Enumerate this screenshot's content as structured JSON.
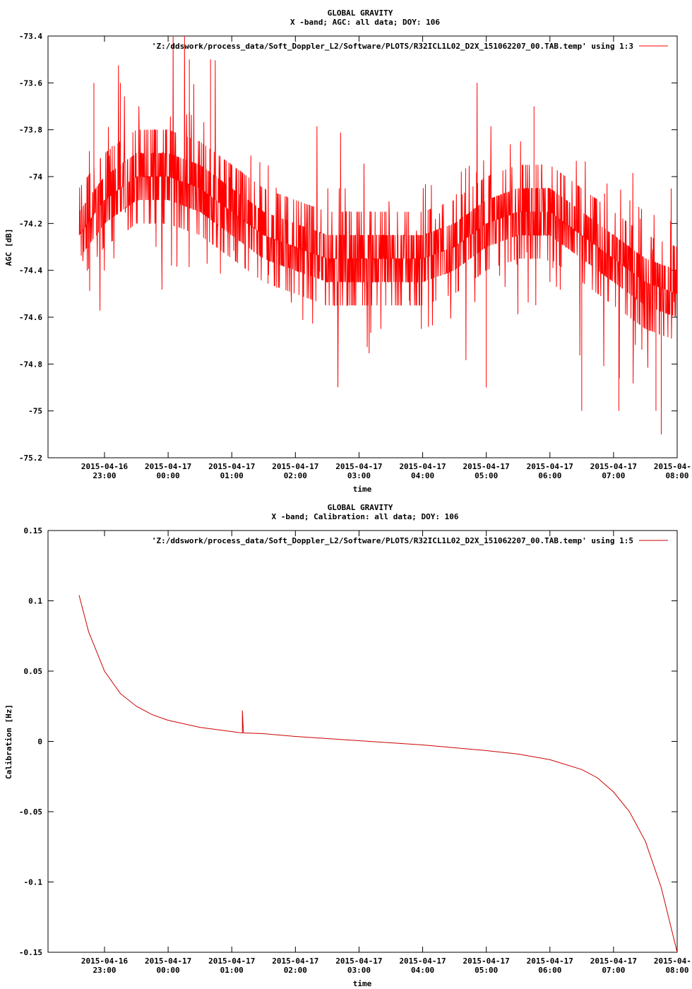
{
  "chart_data": [
    {
      "type": "line",
      "title": "GLOBAL GRAVITY",
      "subtitle": "X -band; AGC: all data; DOY: 106",
      "xlabel": "time",
      "ylabel": "AGC [dB]",
      "ylim": [
        -75.2,
        -73.4
      ],
      "yticks": [
        "-73.4",
        "-73.6",
        "-73.8",
        "-74",
        "-74.2",
        "-74.4",
        "-74.6",
        "-74.8",
        "-75",
        "-75.2"
      ],
      "xticks": [
        [
          "2015-04-16",
          "23:00"
        ],
        [
          "2015-04-17",
          "00:00"
        ],
        [
          "2015-04-17",
          "01:00"
        ],
        [
          "2015-04-17",
          "02:00"
        ],
        [
          "2015-04-17",
          "03:00"
        ],
        [
          "2015-04-17",
          "04:00"
        ],
        [
          "2015-04-17",
          "05:00"
        ],
        [
          "2015-04-17",
          "06:00"
        ],
        [
          "2015-04-17",
          "07:00"
        ],
        [
          "2015-04-17",
          "08:00"
        ]
      ],
      "legend_position": "top-right",
      "series": [
        {
          "name": "'Z:/ddswork/process_data/Soft_Doppler_L2/Software/PLOTS/R32ICL1L02_D2X_151062207_00.TAB.temp' using 1:3",
          "color": "#ff0000",
          "time_range": [
            "2015-04-16 22:36",
            "2015-04-17 08:00"
          ],
          "trend": [
            [
              "2015-04-16 22:36",
              -74.25
            ],
            [
              "2015-04-16 23:00",
              -74.1
            ],
            [
              "2015-04-16 23:30",
              -74.0
            ],
            [
              "2015-04-17 00:00",
              -74.0
            ],
            [
              "2015-04-17 00:30",
              -74.05
            ],
            [
              "2015-04-17 01:00",
              -74.15
            ],
            [
              "2015-04-17 01:30",
              -74.25
            ],
            [
              "2015-04-17 02:00",
              -74.3
            ],
            [
              "2015-04-17 02:30",
              -74.35
            ],
            [
              "2015-04-17 03:00",
              -74.35
            ],
            [
              "2015-04-17 04:00",
              -74.35
            ],
            [
              "2015-04-17 04:30",
              -74.3
            ],
            [
              "2015-04-17 05:00",
              -74.2
            ],
            [
              "2015-04-17 05:30",
              -74.15
            ],
            [
              "2015-04-17 06:00",
              -74.15
            ],
            [
              "2015-04-17 06:30",
              -74.25
            ],
            [
              "2015-04-17 07:00",
              -74.35
            ],
            [
              "2015-04-17 07:30",
              -74.45
            ],
            [
              "2015-04-17 08:00",
              -74.5
            ]
          ],
          "spikes": [
            [
              "2015-04-17 00:20",
              -73.5
            ],
            [
              "2015-04-17 00:40",
              -73.5
            ],
            [
              "2015-04-16 23:15",
              -73.6
            ],
            [
              "2015-04-16 22:50",
              -73.6
            ],
            [
              "2015-04-17 07:45",
              -75.1
            ],
            [
              "2015-04-17 07:40",
              -75.0
            ],
            [
              "2015-04-17 06:30",
              -75.0
            ],
            [
              "2015-04-17 07:05",
              -75.0
            ],
            [
              "2015-04-17 05:00",
              -74.9
            ],
            [
              "2015-04-17 05:45",
              -73.7
            ]
          ]
        }
      ]
    },
    {
      "type": "line",
      "title": "GLOBAL GRAVITY",
      "subtitle": "X -band; Calibration: all data; DOY: 106",
      "xlabel": "time",
      "ylabel": "Calibration [Hz]",
      "ylim": [
        -0.15,
        0.15
      ],
      "yticks": [
        "0.15",
        "0.1",
        "0.05",
        "0",
        "-0.05",
        "-0.1",
        "-0.15"
      ],
      "xticks": [
        [
          "2015-04-16",
          "23:00"
        ],
        [
          "2015-04-17",
          "00:00"
        ],
        [
          "2015-04-17",
          "01:00"
        ],
        [
          "2015-04-17",
          "02:00"
        ],
        [
          "2015-04-17",
          "03:00"
        ],
        [
          "2015-04-17",
          "04:00"
        ],
        [
          "2015-04-17",
          "05:00"
        ],
        [
          "2015-04-17",
          "06:00"
        ],
        [
          "2015-04-17",
          "07:00"
        ],
        [
          "2015-04-17",
          "08:00"
        ]
      ],
      "legend_position": "top-right",
      "series": [
        {
          "name": "'Z:/ddswork/process_data/Soft_Doppler_L2/Software/PLOTS/R32ICL1L02_D2X_151062207_00.TAB.temp' using 1:5",
          "color": "#cc0000",
          "points": [
            [
              "2015-04-16 22:36",
              0.104
            ],
            [
              "2015-04-16 22:45",
              0.078
            ],
            [
              "2015-04-16 23:00",
              0.05
            ],
            [
              "2015-04-16 23:15",
              0.034
            ],
            [
              "2015-04-16 23:30",
              0.025
            ],
            [
              "2015-04-16 23:45",
              0.019
            ],
            [
              "2015-04-17 00:00",
              0.015
            ],
            [
              "2015-04-17 00:30",
              0.01
            ],
            [
              "2015-04-17 01:00",
              0.007
            ],
            [
              "2015-04-17 01:10",
              0.006
            ],
            [
              "2015-04-17 01:10",
              0.022
            ],
            [
              "2015-04-17 01:11",
              0.006
            ],
            [
              "2015-04-17 01:30",
              0.0055
            ],
            [
              "2015-04-17 02:00",
              0.0035
            ],
            [
              "2015-04-17 03:00",
              0.0005
            ],
            [
              "2015-04-17 04:00",
              -0.0025
            ],
            [
              "2015-04-17 05:00",
              -0.0065
            ],
            [
              "2015-04-17 05:30",
              -0.009
            ],
            [
              "2015-04-17 06:00",
              -0.013
            ],
            [
              "2015-04-17 06:30",
              -0.02
            ],
            [
              "2015-04-17 06:45",
              -0.026
            ],
            [
              "2015-04-17 07:00",
              -0.036
            ],
            [
              "2015-04-17 07:15",
              -0.05
            ],
            [
              "2015-04-17 07:30",
              -0.071
            ],
            [
              "2015-04-17 07:45",
              -0.104
            ],
            [
              "2015-04-17 08:00",
              -0.15
            ]
          ]
        }
      ]
    }
  ]
}
